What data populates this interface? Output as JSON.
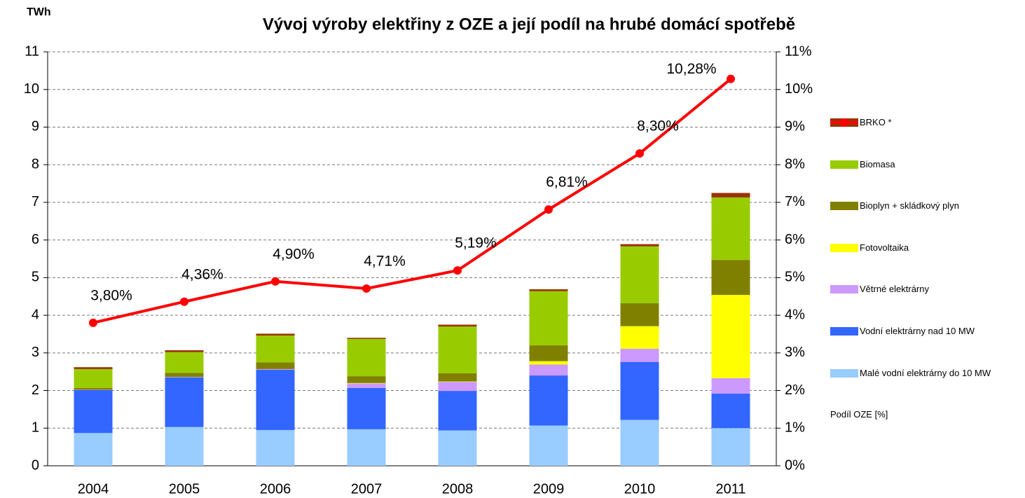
{
  "chart_data": {
    "type": "bar",
    "stacked": true,
    "title": "Vývoj výroby elektřiny z OZE a její podíl na hrubé domácí spotřebě",
    "y_label": "TWh",
    "categories": [
      "2004",
      "2005",
      "2006",
      "2007",
      "2008",
      "2009",
      "2010",
      "2011"
    ],
    "ylim": [
      0,
      11
    ],
    "yticks": [
      0,
      1,
      2,
      3,
      4,
      5,
      6,
      7,
      8,
      9,
      10,
      11
    ],
    "y2lim": [
      0,
      11
    ],
    "y2ticks": [
      {
        "value": 0,
        "label": "0%"
      },
      {
        "value": 1,
        "label": "1%"
      },
      {
        "value": 2,
        "label": "2%"
      },
      {
        "value": 3,
        "label": "3%"
      },
      {
        "value": 4,
        "label": "4%"
      },
      {
        "value": 5,
        "label": "5%"
      },
      {
        "value": 6,
        "label": "6%"
      },
      {
        "value": 7,
        "label": "7%"
      },
      {
        "value": 8,
        "label": "8%"
      },
      {
        "value": 9,
        "label": "9%"
      },
      {
        "value": 10,
        "label": "10%"
      },
      {
        "value": 11,
        "label": "11%"
      }
    ],
    "grid": true,
    "legend": "right",
    "series": [
      {
        "name": "Malé vodní elektrárny do 10 MW",
        "color": "#99ccff",
        "values": [
          0.87,
          1.03,
          0.95,
          0.97,
          0.94,
          1.07,
          1.22,
          1.0
        ]
      },
      {
        "name": "Vodní elektrárny nad 10 MW",
        "color": "#3366ff",
        "values": [
          1.14,
          1.32,
          1.6,
          1.1,
          1.05,
          1.33,
          1.54,
          0.92
        ]
      },
      {
        "name": "Větrné elektrárny",
        "color": "#cc99ff",
        "values": [
          0.01,
          0.01,
          0.02,
          0.12,
          0.24,
          0.29,
          0.35,
          0.41
        ]
      },
      {
        "name": "Fotovoltaika",
        "color": "#ffff00",
        "values": [
          0,
          0,
          0,
          0.01,
          0.01,
          0.09,
          0.6,
          2.21
        ]
      },
      {
        "name": "Bioplyn + skládkový plyn",
        "color": "#808000",
        "values": [
          0.05,
          0.11,
          0.18,
          0.18,
          0.22,
          0.42,
          0.61,
          0.93
        ]
      },
      {
        "name": "Biomasa",
        "color": "#99cc00",
        "values": [
          0.5,
          0.55,
          0.71,
          0.99,
          1.24,
          1.44,
          1.51,
          1.66
        ]
      },
      {
        "name": "BRKO *",
        "color": "#993300",
        "values": [
          0.05,
          0.05,
          0.05,
          0.03,
          0.05,
          0.05,
          0.06,
          0.12
        ]
      },
      {
        "name": "Podíl OZE [%]",
        "type": "line",
        "axis": "y2",
        "color": "#ff0000",
        "values": [
          3.8,
          4.36,
          4.9,
          4.71,
          5.19,
          6.81,
          8.3,
          10.28
        ],
        "value_labels": [
          "3,80%",
          "4,36%",
          "4,90%",
          "4,71%",
          "5,19%",
          "6,81%",
          "8,30%",
          "10,28%"
        ]
      }
    ]
  }
}
